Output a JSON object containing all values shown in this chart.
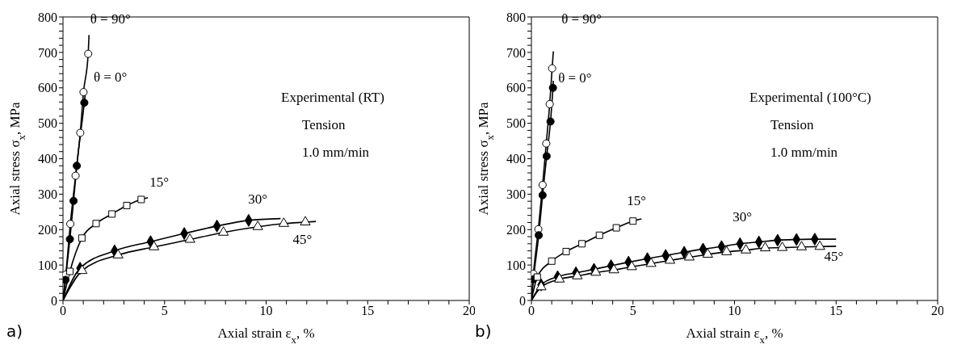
{
  "chart_data": [
    {
      "type": "line",
      "xlabel": "Axial strain ε$_{x}$, %",
      "ylabel": "Axial stress σ$_{x}$, MPa",
      "xlim": [
        0,
        20
      ],
      "ylim": [
        0,
        800
      ],
      "xticks": [
        0,
        {
          "value": 1,
          "label": null
        },
        {
          "value": 2,
          "label": null
        },
        {
          "value": 3,
          "label": null
        },
        {
          "value": 4,
          "label": null
        },
        5,
        {
          "value": 6,
          "label": null
        },
        {
          "value": 7,
          "label": null
        },
        {
          "value": 8,
          "label": null
        },
        {
          "value": 9,
          "label": null
        },
        10,
        {
          "value": 11,
          "label": null
        },
        {
          "value": 12,
          "label": null
        },
        {
          "value": 13,
          "label": null
        },
        {
          "value": 14,
          "label": null
        },
        15,
        {
          "value": 16,
          "label": null
        },
        {
          "value": 17,
          "label": null
        },
        {
          "value": 18,
          "label": null
        },
        {
          "value": 19,
          "label": null
        },
        20
      ],
      "yticks": [
        0,
        {
          "value": 20,
          "label": null
        },
        {
          "value": 40,
          "label": null
        },
        {
          "value": 60,
          "label": null
        },
        {
          "value": 80,
          "label": null
        },
        100,
        {
          "value": 120,
          "label": null
        },
        {
          "value": 140,
          "label": null
        },
        {
          "value": 160,
          "label": null
        },
        {
          "value": 180,
          "label": null
        },
        200,
        {
          "value": 220,
          "label": null
        },
        {
          "value": 240,
          "label": null
        },
        {
          "value": 260,
          "label": null
        },
        {
          "value": 280,
          "label": null
        },
        300,
        {
          "value": 320,
          "label": null
        },
        {
          "value": 340,
          "label": null
        },
        {
          "value": 360,
          "label": null
        },
        {
          "value": 380,
          "label": null
        },
        400,
        {
          "value": 420,
          "label": null
        },
        {
          "value": 440,
          "label": null
        },
        {
          "value": 460,
          "label": null
        },
        {
          "value": 480,
          "label": null
        },
        500,
        {
          "value": 520,
          "label": null
        },
        {
          "value": 540,
          "label": null
        },
        {
          "value": 560,
          "label": null
        },
        {
          "value": 580,
          "label": null
        },
        600,
        {
          "value": 620,
          "label": null
        },
        {
          "value": 640,
          "label": null
        },
        {
          "value": 660,
          "label": null
        },
        {
          "value": 680,
          "label": null
        },
        700,
        {
          "value": 720,
          "label": null
        },
        {
          "value": 740,
          "label": null
        },
        {
          "value": 760,
          "label": null
        },
        {
          "value": 780,
          "label": null
        },
        800
      ],
      "series": [
        {
          "type": "line",
          "color": "#000000",
          "x": [
            0,
            0.14,
            0.36,
            0.62,
            0.85,
            1.01,
            1.24,
            1.28
          ],
          "values": [
            0,
            73,
            216,
            352,
            473,
            588,
            696,
            749
          ]
        },
        {
          "type": "scatter",
          "name": "θ = 90°",
          "marker": "circle",
          "color": "#ffffff",
          "x": [
            0.14,
            0.36,
            0.62,
            0.85,
            1.01,
            1.24
          ],
          "values": [
            73,
            216,
            352,
            473,
            588,
            696
          ]
        },
        {
          "type": "line",
          "color": "#000000",
          "x": [
            0,
            0.12,
            0.34,
            0.52,
            0.68,
            1.05,
            1.1
          ],
          "values": [
            0,
            58,
            173,
            281,
            380,
            558,
            585
          ]
        },
        {
          "type": "scatter",
          "name": "θ = 0°",
          "marker": "circle",
          "color": "#000000",
          "x": [
            0.12,
            0.34,
            0.52,
            0.68,
            1.05
          ],
          "values": [
            58,
            173,
            281,
            380,
            558
          ]
        },
        {
          "type": "line",
          "color": "#000000",
          "x": [
            0,
            0.34,
            0.93,
            1.63,
            2.41,
            3.14,
            3.85,
            4.18
          ],
          "values": [
            0,
            82,
            176,
            217,
            244,
            268,
            285,
            290
          ]
        },
        {
          "type": "scatter",
          "name": "15°",
          "marker": "square",
          "color": "#ffffff",
          "x": [
            0.34,
            0.93,
            1.63,
            2.41,
            3.14,
            3.85
          ],
          "values": [
            82,
            176,
            217,
            244,
            268,
            285
          ]
        },
        {
          "type": "line",
          "color": "#000000",
          "x": [
            0,
            0.84,
            2.54,
            4.31,
            5.97,
            7.58,
            9.14,
            10.71
          ],
          "values": [
            0,
            91,
            140,
            166,
            189,
            210,
            226,
            231
          ]
        },
        {
          "type": "scatter",
          "name": "30°",
          "marker": "diamond",
          "color": "#000000",
          "x": [
            0.84,
            2.54,
            4.31,
            5.97,
            7.58,
            9.14
          ],
          "values": [
            91,
            140,
            166,
            189,
            210,
            226
          ]
        },
        {
          "type": "line",
          "color": "#000000",
          "x": [
            0,
            0.94,
            2.71,
            4.48,
            6.25,
            7.9,
            9.59,
            10.87,
            11.93,
            12.45
          ],
          "values": [
            0,
            84,
            128,
            151,
            172,
            192,
            208,
            217,
            221,
            223
          ]
        },
        {
          "type": "scatter",
          "name": "45°",
          "marker": "triangle",
          "color": "#ffffff",
          "x": [
            0.94,
            2.71,
            4.48,
            6.25,
            7.9,
            9.59,
            10.87,
            11.93
          ],
          "values": [
            84,
            128,
            151,
            172,
            192,
            208,
            217,
            221
          ]
        }
      ],
      "annotations": [
        "a)",
        "Experimental (RT)",
        "Tension",
        "1.0 mm/min"
      ]
    },
    {
      "type": "line",
      "xlabel": "Axial strain ε$_{x}$, %",
      "ylabel": "Axial stress σ$_{x}$, MPa",
      "xlim": [
        0,
        20
      ],
      "ylim": [
        0,
        800
      ],
      "xticks": [
        0,
        {
          "value": 1,
          "label": null
        },
        {
          "value": 2,
          "label": null
        },
        {
          "value": 3,
          "label": null
        },
        {
          "value": 4,
          "label": null
        },
        5,
        {
          "value": 6,
          "label": null
        },
        {
          "value": 7,
          "label": null
        },
        {
          "value": 8,
          "label": null
        },
        {
          "value": 9,
          "label": null
        },
        10,
        {
          "value": 11,
          "label": null
        },
        {
          "value": 12,
          "label": null
        },
        {
          "value": 13,
          "label": null
        },
        {
          "value": 14,
          "label": null
        },
        15,
        {
          "value": 16,
          "label": null
        },
        {
          "value": 17,
          "label": null
        },
        {
          "value": 18,
          "label": null
        },
        {
          "value": 19,
          "label": null
        },
        20
      ],
      "yticks": [
        0,
        {
          "value": 20,
          "label": null
        },
        {
          "value": 40,
          "label": null
        },
        {
          "value": 60,
          "label": null
        },
        {
          "value": 80,
          "label": null
        },
        100,
        {
          "value": 120,
          "label": null
        },
        {
          "value": 140,
          "label": null
        },
        {
          "value": 160,
          "label": null
        },
        {
          "value": 180,
          "label": null
        },
        200,
        {
          "value": 220,
          "label": null
        },
        {
          "value": 240,
          "label": null
        },
        {
          "value": 260,
          "label": null
        },
        {
          "value": 280,
          "label": null
        },
        300,
        {
          "value": 320,
          "label": null
        },
        {
          "value": 340,
          "label": null
        },
        {
          "value": 360,
          "label": null
        },
        {
          "value": 380,
          "label": null
        },
        400,
        {
          "value": 420,
          "label": null
        },
        {
          "value": 440,
          "label": null
        },
        {
          "value": 460,
          "label": null
        },
        {
          "value": 480,
          "label": null
        },
        500,
        {
          "value": 520,
          "label": null
        },
        {
          "value": 540,
          "label": null
        },
        {
          "value": 560,
          "label": null
        },
        {
          "value": 580,
          "label": null
        },
        600,
        {
          "value": 620,
          "label": null
        },
        {
          "value": 640,
          "label": null
        },
        {
          "value": 660,
          "label": null
        },
        {
          "value": 680,
          "label": null
        },
        700,
        {
          "value": 720,
          "label": null
        },
        {
          "value": 740,
          "label": null
        },
        {
          "value": 760,
          "label": null
        },
        {
          "value": 780,
          "label": null
        },
        800
      ],
      "series": [
        {
          "type": "line",
          "color": "#000000",
          "x": [
            0,
            0.1,
            0.34,
            0.55,
            0.73,
            0.9,
            1.02,
            1.08
          ],
          "values": [
            0,
            75,
            201,
            326,
            443,
            554,
            655,
            703
          ]
        },
        {
          "type": "scatter",
          "name": "θ = 90°",
          "marker": "circle",
          "color": "#ffffff",
          "x": [
            0.1,
            0.34,
            0.55,
            0.73,
            0.9,
            1.02
          ],
          "values": [
            75,
            201,
            326,
            443,
            554,
            655
          ]
        },
        {
          "type": "line",
          "color": "#000000",
          "x": [
            0,
            0.1,
            0.36,
            0.55,
            0.75,
            0.94,
            1.06,
            1.08
          ],
          "values": [
            0,
            60,
            184,
            297,
            407,
            505,
            600,
            620
          ]
        },
        {
          "type": "scatter",
          "name": "θ = 0°",
          "marker": "circle",
          "color": "#000000",
          "x": [
            0.1,
            0.36,
            0.55,
            0.75,
            0.94,
            1.06
          ],
          "values": [
            60,
            184,
            297,
            407,
            505,
            600
          ]
        },
        {
          "type": "line",
          "color": "#000000",
          "x": [
            0,
            0.29,
            1.0,
            1.71,
            2.49,
            3.35,
            4.18,
            5.0,
            5.42
          ],
          "values": [
            0,
            66,
            111,
            138,
            160,
            184,
            205,
            224,
            230
          ]
        },
        {
          "type": "scatter",
          "name": "15°",
          "marker": "square",
          "color": "#ffffff",
          "x": [
            0.29,
            1.0,
            1.71,
            2.49,
            3.35,
            4.18,
            5.0
          ],
          "values": [
            66,
            111,
            138,
            160,
            184,
            205,
            224
          ]
        },
        {
          "type": "line",
          "color": "#000000",
          "x": [
            0,
            0.48,
            1.29,
            2.19,
            3.08,
            3.92,
            4.78,
            5.71,
            6.61,
            7.52,
            8.45,
            9.36,
            10.27,
            11.2,
            12.12,
            13.05,
            13.95,
            15.0
          ],
          "values": [
            0,
            44,
            67,
            78,
            88,
            98,
            108,
            118,
            127,
            136,
            145,
            152,
            160,
            165,
            170,
            172,
            173,
            173
          ]
        },
        {
          "type": "scatter",
          "name": "30°",
          "marker": "diamond",
          "color": "#000000",
          "x": [
            0.48,
            1.29,
            2.19,
            3.08,
            3.92,
            4.78,
            5.71,
            6.61,
            7.52,
            8.45,
            9.36,
            10.27,
            11.2,
            12.12,
            13.05,
            13.95
          ],
          "values": [
            44,
            67,
            78,
            88,
            98,
            108,
            118,
            127,
            136,
            145,
            152,
            160,
            165,
            170,
            172,
            173
          ]
        },
        {
          "type": "line",
          "color": "#000000",
          "x": [
            0,
            0.48,
            1.38,
            2.26,
            3.17,
            4.06,
            4.94,
            5.89,
            6.82,
            7.77,
            8.68,
            9.61,
            10.56,
            11.51,
            12.35,
            13.3,
            14.2,
            15.0
          ],
          "values": [
            0,
            38,
            60,
            69,
            79,
            86,
            95,
            104,
            113,
            122,
            130,
            137,
            142,
            148,
            149,
            151,
            152,
            153
          ]
        },
        {
          "type": "scatter",
          "name": "45°",
          "marker": "triangle",
          "color": "#ffffff",
          "x": [
            0.48,
            1.38,
            2.26,
            3.17,
            4.06,
            4.94,
            5.89,
            6.82,
            7.77,
            8.68,
            9.61,
            10.56,
            11.51,
            12.35,
            13.3,
            14.2
          ],
          "values": [
            38,
            60,
            69,
            79,
            86,
            95,
            104,
            113,
            122,
            130,
            137,
            142,
            148,
            149,
            151,
            152
          ]
        }
      ],
      "annotations": [
        "b)",
        "Experimental (100°C)",
        "Tension",
        "1.0 mm/min"
      ]
    }
  ]
}
